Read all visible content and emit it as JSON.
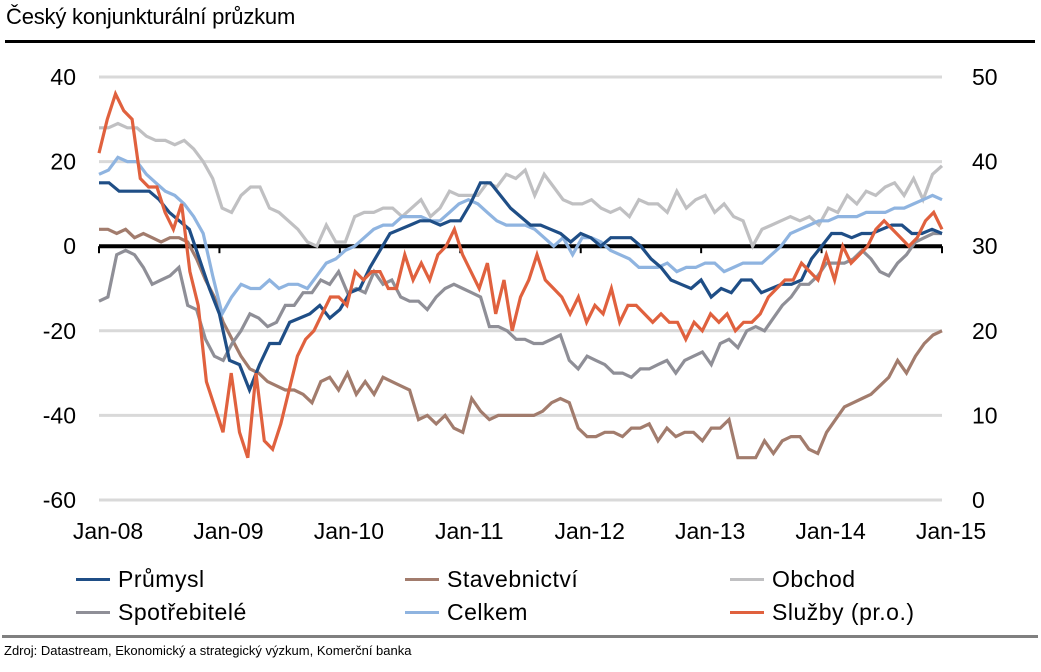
{
  "title": "Český konjunkturální průzkum",
  "source": "Zdroj: Datastream, Ekonomický a strategický výzkum, Komerční banka",
  "chart_data": {
    "type": "line",
    "title": "Český konjunkturální průzkum",
    "xlabel": "",
    "ylabel": "",
    "x_start": "Jan-08",
    "x_end": "Jan-15",
    "frequency": "monthly",
    "x_tick_labels": [
      "Jan-08",
      "Jan-09",
      "Jan-10",
      "Jan-11",
      "Jan-12",
      "Jan-13",
      "Jan-14",
      "Jan-15"
    ],
    "y_left": {
      "range": [
        -60,
        40
      ],
      "ticks": [
        40,
        20,
        0,
        -20,
        -40,
        -60
      ],
      "tick_labels": [
        "40",
        "20",
        "0",
        "-20",
        "-40",
        "-60"
      ]
    },
    "y_right": {
      "range": [
        0,
        50
      ],
      "ticks": [
        50,
        40,
        30,
        20,
        10,
        0
      ],
      "tick_labels": [
        "50",
        "40",
        "30",
        "20",
        "10",
        "0"
      ]
    },
    "grid": true,
    "legend_position": "bottom",
    "series": [
      {
        "name": "Průmysl",
        "axis": "left",
        "color": "#1f4e86",
        "values": [
          15,
          15,
          13,
          13,
          13,
          13,
          11,
          8,
          6,
          4,
          -3,
          -10,
          -16,
          -27,
          -28,
          -34,
          -28,
          -23,
          -23,
          -18,
          -17,
          -16,
          -14,
          -17,
          -15,
          -11,
          -10,
          -5,
          -1,
          3,
          4,
          5,
          6,
          6,
          5,
          6,
          6,
          10,
          15,
          15,
          12,
          9,
          7,
          5,
          5,
          4,
          3,
          1,
          3,
          2,
          0,
          2,
          2,
          2,
          0,
          -3,
          -5,
          -8,
          -9,
          -10,
          -8,
          -12,
          -10,
          -11,
          -8,
          -8,
          -11,
          -10,
          -9,
          -9,
          -8,
          -3,
          0,
          3,
          3,
          2,
          3,
          3,
          4,
          5,
          5,
          3,
          3,
          4,
          3
        ]
      },
      {
        "name": "Stavebnictví",
        "axis": "left",
        "color": "#a27c6d",
        "values": [
          4,
          4,
          3,
          4,
          2,
          3,
          2,
          1,
          2,
          2,
          1,
          -3,
          -8,
          -12,
          -18,
          -22,
          -26,
          -29,
          -30,
          -32,
          -33,
          -34,
          -34,
          -35,
          -37,
          -32,
          -31,
          -34,
          -30,
          -35,
          -32,
          -35,
          -31,
          -32,
          -33,
          -34,
          -41,
          -40,
          -42,
          -40,
          -43,
          -44,
          -36,
          -39,
          -41,
          -40,
          -40,
          -40,
          -40,
          -40,
          -39,
          -37,
          -36,
          -37,
          -43,
          -45,
          -45,
          -44,
          -44,
          -45,
          -43,
          -43,
          -42,
          -46,
          -43,
          -45,
          -44,
          -44,
          -46,
          -43,
          -43,
          -41,
          -50,
          -50,
          -50,
          -46,
          -49,
          -46,
          -45,
          -45,
          -48,
          -49,
          -44,
          -41,
          -38,
          -37,
          -36,
          -35,
          -33,
          -31,
          -27,
          -30,
          -26,
          -23,
          -21,
          -20
        ]
      },
      {
        "name": "Obchod",
        "axis": "left",
        "color": "#c0c0c2",
        "values": [
          28,
          28,
          29,
          28,
          28,
          26,
          25,
          25,
          24,
          25,
          23,
          20,
          16,
          9,
          8,
          12,
          14,
          14,
          9,
          8,
          6,
          4,
          1,
          0,
          5,
          1,
          1,
          7,
          8,
          8,
          9,
          9,
          7,
          9,
          11,
          7,
          9,
          13,
          12,
          12,
          12,
          15,
          14,
          17,
          16,
          18,
          12,
          17,
          14,
          11,
          10,
          10,
          11,
          9,
          8,
          9,
          7,
          11,
          10,
          10,
          8,
          13,
          9,
          11,
          12,
          8,
          10,
          7,
          6,
          0,
          4,
          5,
          6,
          7,
          6,
          7,
          5,
          9,
          8,
          12,
          10,
          13,
          12,
          14,
          15,
          12,
          16,
          11,
          17,
          19
        ]
      },
      {
        "name": "Spotřebitelé",
        "axis": "left",
        "color": "#8f8f97",
        "values": [
          -13,
          -12,
          -2,
          -1,
          -2,
          -5,
          -9,
          -8,
          -7,
          -5,
          -14,
          -15,
          -22,
          -26,
          -27,
          -23,
          -20,
          -16,
          -17,
          -19,
          -18,
          -14,
          -14,
          -11,
          -11,
          -8,
          -9,
          -6,
          -11,
          -10,
          -11,
          -6,
          -9,
          -8,
          -12,
          -13,
          -13,
          -15,
          -12,
          -10,
          -9,
          -10,
          -11,
          -12,
          -19,
          -19,
          -20,
          -22,
          -22,
          -23,
          -23,
          -22,
          -21,
          -27,
          -29,
          -26,
          -27,
          -28,
          -30,
          -30,
          -31,
          -29,
          -29,
          -28,
          -27,
          -30,
          -27,
          -26,
          -25,
          -28,
          -23,
          -22,
          -24,
          -20,
          -19,
          -20,
          -17,
          -14,
          -12,
          -9,
          -9,
          -7,
          -4,
          -4,
          -4,
          -3,
          -1,
          -3,
          -6,
          -7,
          -4,
          -2,
          1,
          2,
          3,
          3
        ]
      },
      {
        "name": "Celkem",
        "axis": "left",
        "color": "#8fb4e0",
        "values": [
          17,
          18,
          21,
          20,
          20,
          17,
          15,
          13,
          12,
          10,
          7,
          3,
          -7,
          -16,
          -12,
          -9,
          -10,
          -10,
          -8,
          -10,
          -9,
          -9,
          -10,
          -7,
          -4,
          -3,
          -1,
          0,
          2,
          4,
          5,
          5,
          7,
          7,
          7,
          6,
          6,
          8,
          10,
          11,
          10,
          8,
          6,
          5,
          5,
          5,
          4,
          2,
          0,
          2,
          -2,
          2,
          2,
          1,
          -1,
          -2,
          -3,
          -5,
          -5,
          -5,
          -4,
          -6,
          -5,
          -5,
          -4,
          -4,
          -6,
          -5,
          -4,
          -4,
          -4,
          -2,
          0,
          3,
          4,
          5,
          6,
          6,
          7,
          7,
          7,
          8,
          8,
          8,
          9,
          9,
          10,
          11,
          12,
          11
        ]
      },
      {
        "name": "Služby (pr.o.)",
        "axis": "right",
        "color": "#e0613e",
        "values": [
          41,
          45,
          48,
          46,
          45,
          38,
          37,
          37,
          34,
          32,
          35,
          27,
          23,
          14,
          11,
          8,
          15,
          8,
          5,
          15,
          7,
          6,
          9,
          13,
          17,
          19,
          20,
          22,
          24,
          24,
          23,
          27,
          26,
          27,
          27,
          25,
          25,
          29,
          26,
          28,
          26,
          29,
          30,
          32,
          29,
          27,
          25,
          28,
          22,
          26,
          20,
          24,
          26,
          29,
          26,
          25,
          24,
          22,
          24,
          21,
          23,
          22,
          25,
          21,
          23,
          23,
          22,
          21,
          22,
          21,
          21,
          19,
          21,
          20,
          22,
          21,
          22,
          20,
          21,
          21,
          22,
          24,
          25,
          26,
          26,
          28,
          27,
          26,
          29,
          26,
          30,
          28,
          29,
          30,
          32,
          33,
          32,
          31,
          30,
          31,
          33,
          34,
          32
        ]
      }
    ]
  },
  "legend": {
    "items": [
      {
        "label": "Průmysl",
        "color": "#1f4e86"
      },
      {
        "label": "Stavebnictví",
        "color": "#a27c6d"
      },
      {
        "label": "Obchod",
        "color": "#c0c0c2"
      },
      {
        "label": "Spotřebitelé",
        "color": "#8f8f97"
      },
      {
        "label": "Celkem",
        "color": "#8fb4e0"
      },
      {
        "label": "Služby (pr.o.)",
        "color": "#e0613e"
      }
    ]
  }
}
